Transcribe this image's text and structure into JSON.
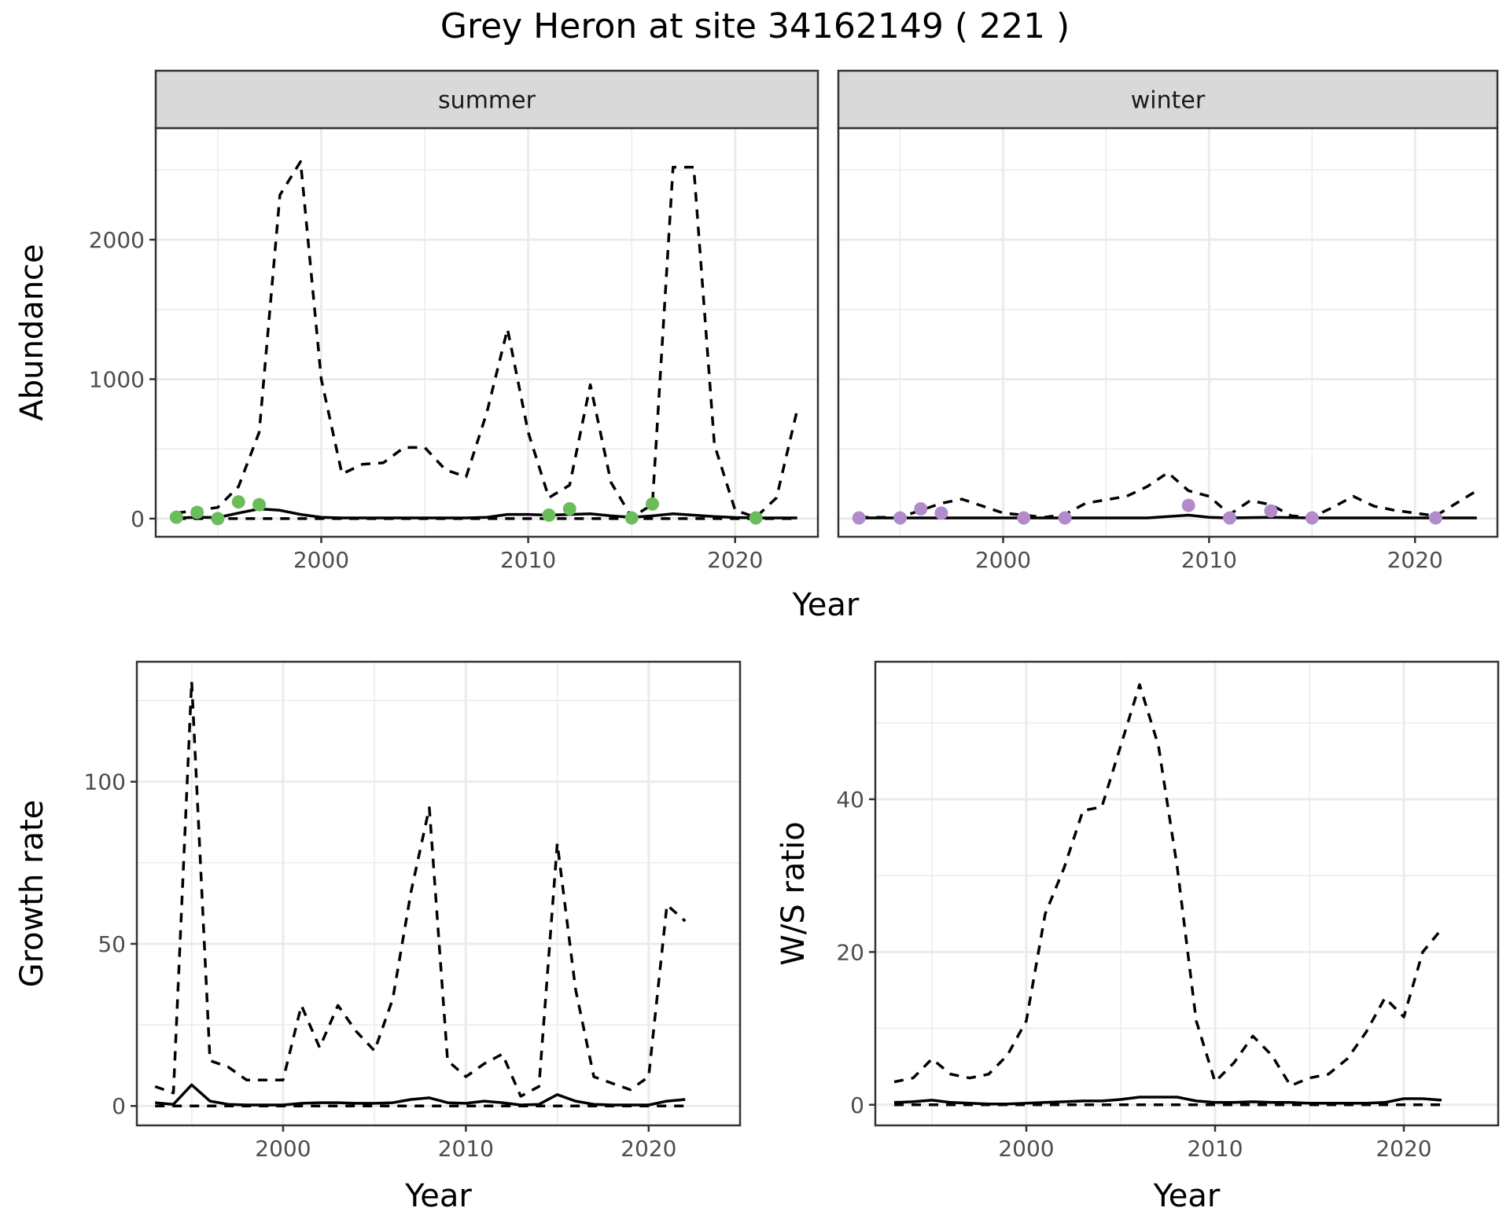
{
  "title": "Grey Heron at site 34162149 ( 221 )",
  "colors": {
    "summer_points": "#6ABD5A",
    "winter_points": "#B28BCB",
    "line": "#000000",
    "strip_fill": "#D9D9D9",
    "grid": "#EBEBEB"
  },
  "chart_data": [
    {
      "type": "line",
      "panel": "summer",
      "facet_strip": "summer",
      "xlabel": "",
      "ylabel": "Abundance",
      "xlim": [
        1992,
        2024
      ],
      "ylim": [
        -130,
        2800
      ],
      "x_ticks": [
        2000,
        2010,
        2020
      ],
      "y_ticks": [
        0,
        1000,
        2000
      ],
      "x_tick_labels": [
        "2000",
        "2010",
        "2020"
      ],
      "y_tick_labels": [
        "0",
        "1000",
        "2000"
      ],
      "grid": true,
      "series": [
        {
          "style": "solid",
          "x": [
            1993,
            1994,
            1995,
            1996,
            1997,
            1998,
            1999,
            2000,
            2001,
            2002,
            2003,
            2004,
            2005,
            2006,
            2007,
            2008,
            2009,
            2010,
            2011,
            2012,
            2013,
            2014,
            2015,
            2016,
            2017,
            2018,
            2019,
            2020,
            2021,
            2022,
            2023
          ],
          "y": [
            5,
            10,
            8,
            40,
            70,
            60,
            30,
            10,
            5,
            5,
            5,
            5,
            5,
            5,
            5,
            10,
            30,
            30,
            25,
            30,
            35,
            20,
            10,
            20,
            35,
            25,
            15,
            8,
            5,
            5,
            5
          ]
        },
        {
          "style": "dashed",
          "x": [
            1993,
            1994,
            1995,
            1996,
            1997,
            1998,
            1999,
            2000,
            2001,
            2002,
            2003,
            2004,
            2005,
            2006,
            2007,
            2008,
            2009,
            2010,
            2011,
            2012,
            2013,
            2014,
            2015,
            2016,
            2017,
            2018,
            2019,
            2020,
            2021,
            2022,
            2023
          ],
          "y": [
            40,
            60,
            80,
            230,
            620,
            2320,
            2560,
            1000,
            320,
            390,
            400,
            510,
            510,
            350,
            300,
            760,
            1360,
            620,
            150,
            240,
            960,
            260,
            10,
            100,
            2520,
            2520,
            530,
            60,
            10,
            150,
            780
          ]
        },
        {
          "style": "dashed",
          "x": [
            1993,
            2023
          ],
          "y": [
            0,
            0
          ]
        }
      ],
      "points": {
        "x": [
          1993,
          1994,
          1995,
          1996,
          1997,
          2011,
          2012,
          2015,
          2016,
          2021
        ],
        "y": [
          10,
          45,
          0,
          120,
          100,
          25,
          70,
          5,
          105,
          5
        ]
      }
    },
    {
      "type": "line",
      "panel": "winter",
      "facet_strip": "winter",
      "xlabel": "",
      "ylabel": "",
      "xlim": [
        1992,
        2024
      ],
      "ylim": [
        -130,
        2800
      ],
      "x_ticks": [
        2000,
        2010,
        2020
      ],
      "x_tick_labels": [
        "2000",
        "2010",
        "2020"
      ],
      "y_ticks": [
        0,
        1000,
        2000
      ],
      "grid": true,
      "series": [
        {
          "style": "solid",
          "x": [
            1993,
            1995,
            1996,
            1997,
            1999,
            2001,
            2003,
            2005,
            2007,
            2009,
            2010,
            2011,
            2013,
            2015,
            2017,
            2019,
            2021,
            2023
          ],
          "y": [
            5,
            5,
            5,
            5,
            5,
            5,
            5,
            5,
            5,
            25,
            10,
            5,
            10,
            5,
            5,
            5,
            5,
            5
          ]
        },
        {
          "style": "dashed",
          "x": [
            1993,
            1995,
            1996,
            1997,
            1998,
            2000,
            2002,
            2003,
            2004,
            2006,
            2007,
            2008,
            2009,
            2010,
            2011,
            2012,
            2013,
            2014,
            2015,
            2016,
            2017,
            2018,
            2019,
            2021,
            2022,
            2023
          ],
          "y": [
            10,
            10,
            60,
            110,
            140,
            40,
            10,
            30,
            110,
            160,
            230,
            330,
            200,
            160,
            30,
            130,
            100,
            20,
            10,
            80,
            160,
            90,
            60,
            20,
            110,
            200
          ]
        }
      ],
      "points": {
        "x": [
          1993,
          1995,
          1996,
          1997,
          2001,
          2003,
          2009,
          2011,
          2013,
          2015,
          2021
        ],
        "y": [
          5,
          5,
          70,
          40,
          5,
          5,
          95,
          5,
          55,
          5,
          5
        ]
      }
    },
    {
      "type": "line",
      "panel": "growth",
      "xlabel": "Year",
      "ylabel": "Growth rate",
      "xlim": [
        1992,
        2025
      ],
      "ylim": [
        -6,
        137
      ],
      "x_ticks": [
        2000,
        2010,
        2020
      ],
      "y_ticks": [
        0,
        50,
        100
      ],
      "x_tick_labels": [
        "2000",
        "2010",
        "2020"
      ],
      "y_tick_labels": [
        "0",
        "50",
        "100"
      ],
      "grid": true,
      "series": [
        {
          "style": "solid",
          "x": [
            1993,
            1994,
            1995,
            1996,
            1997,
            1998,
            1999,
            2000,
            2001,
            2002,
            2003,
            2004,
            2005,
            2006,
            2007,
            2008,
            2009,
            2010,
            2011,
            2012,
            2013,
            2014,
            2015,
            2016,
            2017,
            2018,
            2019,
            2020,
            2021,
            2022
          ],
          "y": [
            1,
            0.5,
            6.5,
            1.5,
            0.5,
            0.3,
            0.3,
            0.3,
            0.8,
            1,
            1,
            0.8,
            0.8,
            1,
            2,
            2.5,
            1,
            0.8,
            1.5,
            1,
            0.3,
            0.5,
            3.5,
            1.5,
            0.5,
            0.3,
            0.3,
            0.3,
            1.5,
            2
          ]
        },
        {
          "style": "dashed",
          "x": [
            1993,
            1994,
            1995,
            1996,
            1997,
            1998,
            1999,
            2000,
            2001,
            2002,
            2003,
            2004,
            2005,
            2006,
            2007,
            2008,
            2009,
            2010,
            2011,
            2012,
            2013,
            2014,
            2015,
            2016,
            2017,
            2018,
            2019,
            2020,
            2021,
            2022
          ],
          "y": [
            6,
            4,
            131,
            14,
            12,
            8,
            8,
            8,
            31,
            18,
            31,
            23,
            17,
            33,
            66,
            92,
            14,
            9,
            13,
            16,
            3,
            6,
            81,
            36,
            9,
            7,
            5,
            9,
            62,
            57
          ]
        },
        {
          "style": "dashed",
          "x": [
            1993,
            2022
          ],
          "y": [
            0,
            0
          ]
        }
      ]
    },
    {
      "type": "line",
      "panel": "ws_ratio",
      "xlabel": "Year",
      "ylabel": "W/S ratio",
      "xlim": [
        1992,
        2025
      ],
      "ylim": [
        -2.7,
        58
      ],
      "x_ticks": [
        2000,
        2010,
        2020
      ],
      "y_ticks": [
        0,
        20,
        40
      ],
      "x_tick_labels": [
        "2000",
        "2010",
        "2020"
      ],
      "y_tick_labels": [
        "0",
        "20",
        "40"
      ],
      "grid": true,
      "series": [
        {
          "style": "solid",
          "x": [
            1993,
            1994,
            1995,
            1996,
            1997,
            1998,
            1999,
            2000,
            2001,
            2002,
            2003,
            2004,
            2005,
            2006,
            2007,
            2008,
            2009,
            2010,
            2011,
            2012,
            2013,
            2014,
            2015,
            2016,
            2017,
            2018,
            2019,
            2020,
            2021,
            2022
          ],
          "y": [
            0.3,
            0.4,
            0.6,
            0.3,
            0.2,
            0.1,
            0.1,
            0.2,
            0.3,
            0.4,
            0.5,
            0.5,
            0.7,
            1,
            1,
            1,
            0.5,
            0.3,
            0.3,
            0.4,
            0.3,
            0.3,
            0.2,
            0.2,
            0.2,
            0.2,
            0.3,
            0.8,
            0.8,
            0.6
          ]
        },
        {
          "style": "dashed",
          "x": [
            1993,
            1994,
            1995,
            1996,
            1997,
            1998,
            1999,
            2000,
            2001,
            2002,
            2003,
            2004,
            2005,
            2006,
            2007,
            2008,
            2009,
            2010,
            2011,
            2012,
            2013,
            2014,
            2015,
            2016,
            2017,
            2018,
            2019,
            2020,
            2021,
            2022
          ],
          "y": [
            3,
            3.5,
            6,
            4,
            3.5,
            4,
            6.5,
            11,
            25,
            31,
            38.5,
            39,
            47,
            55,
            47,
            31,
            11,
            3,
            5.5,
            9,
            6.5,
            2.5,
            3.5,
            4,
            6,
            9.5,
            14,
            11.5,
            20,
            23
          ]
        },
        {
          "style": "dashed",
          "x": [
            1993,
            2022
          ],
          "y": [
            0,
            0
          ]
        }
      ]
    }
  ],
  "labels": {
    "year_mid": "Year",
    "year_bottom_left": "Year",
    "year_bottom_right": "Year"
  }
}
